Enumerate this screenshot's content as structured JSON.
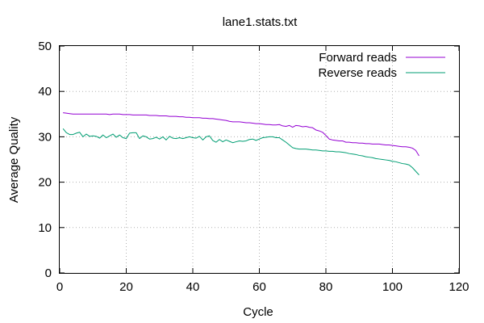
{
  "chart_data": {
    "type": "line",
    "title": "lane1.stats.txt",
    "xlabel": "Cycle",
    "ylabel": "Average Quality",
    "xlim": [
      0,
      120
    ],
    "ylim": [
      0,
      50
    ],
    "xticks": [
      0,
      20,
      40,
      60,
      80,
      100,
      120
    ],
    "yticks": [
      0,
      10,
      20,
      30,
      40,
      50
    ],
    "grid": true,
    "legend_position": "top-right",
    "series": [
      {
        "name": "Forward reads",
        "color": "#9400d3",
        "x": [
          1,
          2,
          3,
          4,
          5,
          6,
          7,
          8,
          9,
          10,
          11,
          12,
          13,
          14,
          15,
          16,
          17,
          18,
          19,
          20,
          21,
          22,
          23,
          24,
          25,
          26,
          27,
          28,
          29,
          30,
          31,
          32,
          33,
          34,
          35,
          36,
          37,
          38,
          39,
          40,
          41,
          42,
          43,
          44,
          45,
          46,
          47,
          48,
          49,
          50,
          51,
          52,
          53,
          54,
          55,
          56,
          57,
          58,
          59,
          60,
          61,
          62,
          63,
          64,
          65,
          66,
          67,
          68,
          69,
          70,
          71,
          72,
          73,
          74,
          75,
          76,
          77,
          78,
          79,
          80,
          81,
          82,
          83,
          84,
          85,
          86,
          87,
          88,
          89,
          90,
          91,
          92,
          93,
          94,
          95,
          96,
          97,
          98,
          99,
          100,
          101,
          102,
          103,
          104,
          105,
          106,
          107,
          108
        ],
        "values": [
          35.3,
          35.2,
          35.1,
          35.0,
          35.0,
          35.0,
          35.0,
          35.0,
          35.0,
          35.0,
          35.0,
          35.0,
          35.0,
          35.0,
          34.9,
          35.0,
          35.0,
          35.0,
          34.9,
          34.9,
          34.9,
          34.8,
          34.8,
          34.8,
          34.8,
          34.8,
          34.7,
          34.7,
          34.7,
          34.6,
          34.6,
          34.6,
          34.5,
          34.5,
          34.5,
          34.4,
          34.4,
          34.3,
          34.3,
          34.2,
          34.2,
          34.2,
          34.1,
          34.1,
          34.0,
          34.0,
          33.9,
          33.8,
          33.7,
          33.6,
          33.4,
          33.3,
          33.3,
          33.3,
          33.2,
          33.1,
          33.1,
          33.0,
          32.9,
          32.9,
          32.8,
          32.7,
          32.7,
          32.6,
          32.6,
          32.7,
          32.4,
          32.3,
          32.5,
          32.1,
          32.5,
          32.4,
          32.2,
          32.3,
          32.1,
          32.0,
          31.5,
          31.3,
          31.0,
          30.3,
          29.5,
          29.3,
          29.2,
          29.1,
          29.1,
          28.8,
          28.8,
          28.7,
          28.7,
          28.6,
          28.6,
          28.5,
          28.5,
          28.4,
          28.4,
          28.4,
          28.3,
          28.2,
          28.2,
          28.1,
          28.0,
          27.9,
          27.8,
          27.8,
          27.7,
          27.5,
          27.0,
          25.8
        ]
      },
      {
        "name": "Reverse reads",
        "color": "#009e73",
        "x": [
          1,
          2,
          3,
          4,
          5,
          6,
          7,
          8,
          9,
          10,
          11,
          12,
          13,
          14,
          15,
          16,
          17,
          18,
          19,
          20,
          21,
          22,
          23,
          24,
          25,
          26,
          27,
          28,
          29,
          30,
          31,
          32,
          33,
          34,
          35,
          36,
          37,
          38,
          39,
          40,
          41,
          42,
          43,
          44,
          45,
          46,
          47,
          48,
          49,
          50,
          51,
          52,
          53,
          54,
          55,
          56,
          57,
          58,
          59,
          60,
          61,
          62,
          63,
          64,
          65,
          66,
          67,
          68,
          69,
          70,
          71,
          72,
          73,
          74,
          75,
          76,
          77,
          78,
          79,
          80,
          81,
          82,
          83,
          84,
          85,
          86,
          87,
          88,
          89,
          90,
          91,
          92,
          93,
          94,
          95,
          96,
          97,
          98,
          99,
          100,
          101,
          102,
          103,
          104,
          105,
          106,
          107,
          108
        ],
        "values": [
          31.8,
          30.9,
          30.5,
          30.5,
          30.8,
          31.0,
          30.0,
          30.6,
          30.1,
          30.2,
          30.1,
          29.7,
          30.4,
          29.8,
          30.2,
          30.6,
          29.9,
          30.4,
          29.8,
          29.6,
          30.8,
          30.9,
          30.9,
          29.6,
          30.2,
          30.0,
          29.5,
          29.6,
          29.9,
          29.5,
          30.0,
          29.3,
          30.1,
          29.7,
          29.6,
          29.8,
          29.6,
          29.8,
          30.0,
          29.8,
          29.7,
          30.1,
          29.3,
          30.0,
          30.2,
          29.2,
          28.8,
          29.4,
          28.9,
          29.3,
          29.0,
          28.7,
          28.9,
          29.1,
          29.0,
          29.1,
          29.4,
          29.5,
          29.2,
          29.5,
          29.8,
          29.9,
          30.0,
          30.0,
          29.8,
          29.8,
          29.3,
          28.8,
          28.2,
          27.6,
          27.4,
          27.3,
          27.3,
          27.3,
          27.2,
          27.1,
          27.1,
          27.0,
          26.9,
          26.9,
          26.8,
          26.8,
          26.7,
          26.7,
          26.6,
          26.5,
          26.3,
          26.2,
          26.1,
          25.9,
          25.8,
          25.6,
          25.5,
          25.4,
          25.2,
          25.1,
          25.0,
          24.9,
          24.8,
          24.6,
          24.5,
          24.3,
          24.1,
          24.0,
          23.8,
          23.2,
          22.4,
          21.6
        ]
      }
    ]
  }
}
